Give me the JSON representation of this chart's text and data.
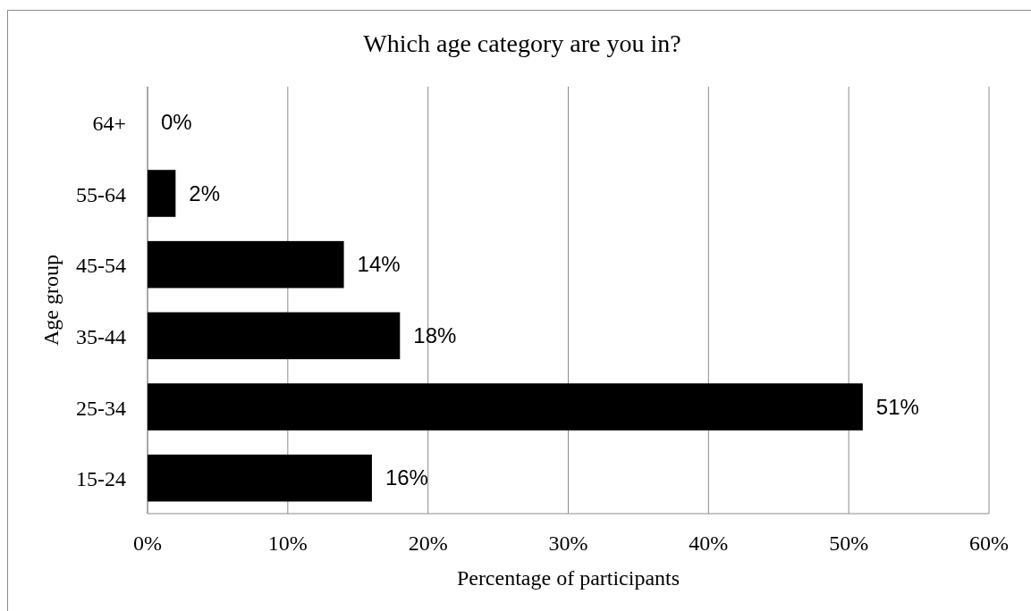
{
  "chart_data": {
    "type": "bar",
    "orientation": "horizontal",
    "title": "Which age category are you in?",
    "xlabel": "Percentage of participants",
    "ylabel": "Age group",
    "categories": [
      "64+",
      "55-64",
      "45-54",
      "35-44",
      "25-34",
      "15-24"
    ],
    "values": [
      0,
      2,
      14,
      18,
      51,
      16
    ],
    "value_labels": [
      "0%",
      "2%",
      "14%",
      "18%",
      "51%",
      "16%"
    ],
    "color": "#000000",
    "xlim": [
      0,
      60
    ],
    "xticks": [
      {
        "value": 0,
        "label": "0%"
      },
      {
        "value": 10,
        "label": "10%"
      },
      {
        "value": 20,
        "label": "20%"
      },
      {
        "value": 30,
        "label": "30%"
      },
      {
        "value": 40,
        "label": "40%"
      },
      {
        "value": 50,
        "label": "50%"
      },
      {
        "value": 60,
        "label": "60%"
      }
    ],
    "grid": "x"
  }
}
